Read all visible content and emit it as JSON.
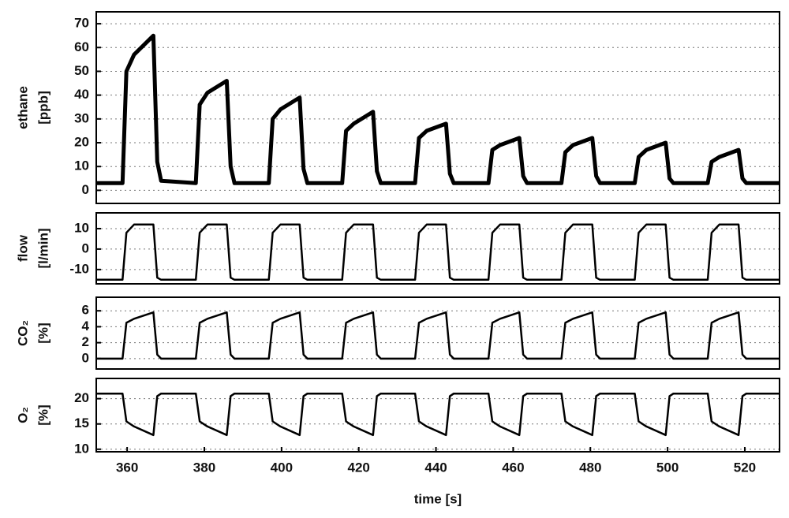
{
  "chart_data": [
    {
      "type": "line",
      "ylabel": "ethane",
      "yunit": "[ppb]",
      "x": [
        352,
        358.8,
        359.8,
        361.8,
        366.8,
        367.8,
        368.8,
        377.8,
        378.8,
        380.8,
        385.8,
        386.8,
        387.8,
        396.7,
        397.7,
        399.7,
        404.7,
        405.7,
        406.7,
        415.7,
        416.7,
        418.7,
        423.7,
        424.7,
        425.7,
        434.6,
        435.6,
        437.6,
        442.6,
        443.6,
        444.6,
        453.6,
        454.6,
        456.6,
        461.6,
        462.6,
        463.6,
        472.5,
        473.5,
        475.5,
        480.5,
        481.5,
        482.5,
        491.5,
        492.5,
        494.5,
        499.5,
        500.5,
        501.5,
        510.4,
        511.4,
        513.4,
        518.4,
        519.4,
        520.4,
        529
      ],
      "series": [
        {
          "color": "#000000",
          "values": [
            3,
            3,
            50,
            57,
            65,
            12,
            4,
            3,
            36,
            41,
            46,
            10,
            3,
            3,
            30,
            34,
            39,
            9,
            3,
            3,
            25,
            28,
            33,
            8,
            3,
            3,
            22,
            25,
            28,
            7,
            3,
            3,
            17,
            19,
            22,
            6,
            3,
            3,
            16,
            19,
            22,
            6,
            3,
            3,
            14,
            17,
            20,
            5,
            3,
            3,
            12,
            14,
            17,
            5,
            3,
            3
          ]
        }
      ],
      "xlim": [
        352,
        529
      ],
      "ylim": [
        -5.5,
        75
      ],
      "yticks": [
        0,
        10,
        20,
        30,
        40,
        50,
        60,
        70
      ],
      "grid": true
    },
    {
      "type": "line",
      "ylabel": "flow",
      "yunit": "[l/min]",
      "x": [
        352,
        358.8,
        359.8,
        361.8,
        366.8,
        367.8,
        368.8,
        377.8,
        378.8,
        380.8,
        385.8,
        386.8,
        387.8,
        396.7,
        397.7,
        399.7,
        404.7,
        405.7,
        406.7,
        415.7,
        416.7,
        418.7,
        423.7,
        424.7,
        425.7,
        434.6,
        435.6,
        437.6,
        442.6,
        443.6,
        444.6,
        453.6,
        454.6,
        456.6,
        461.6,
        462.6,
        463.6,
        472.5,
        473.5,
        475.5,
        480.5,
        481.5,
        482.5,
        491.5,
        492.5,
        494.5,
        499.5,
        500.5,
        501.5,
        510.4,
        511.4,
        513.4,
        518.4,
        519.4,
        520.4,
        529
      ],
      "series": [
        {
          "color": "#000000",
          "values": [
            -15,
            -15,
            8,
            12,
            12,
            -14,
            -15,
            -15,
            8,
            12,
            12,
            -14,
            -15,
            -15,
            8,
            12,
            12,
            -14,
            -15,
            -15,
            8,
            12,
            12,
            -14,
            -15,
            -15,
            8,
            12,
            12,
            -14,
            -15,
            -15,
            8,
            12,
            12,
            -14,
            -15,
            -15,
            8,
            12,
            12,
            -14,
            -15,
            -15,
            8,
            12,
            12,
            -14,
            -15,
            -15,
            8,
            12,
            12,
            -14,
            -15,
            -15
          ]
        }
      ],
      "xlim": [
        352,
        529
      ],
      "ylim": [
        -17,
        17.7
      ],
      "yticks": [
        -10,
        0,
        10
      ],
      "grid": true
    },
    {
      "type": "line",
      "ylabel": "CO₂",
      "yunit": "[%]",
      "x": [
        352,
        358.8,
        359.8,
        361.8,
        366.8,
        367.8,
        368.8,
        377.8,
        378.8,
        380.8,
        385.8,
        386.8,
        387.8,
        396.7,
        397.7,
        399.7,
        404.7,
        405.7,
        406.7,
        415.7,
        416.7,
        418.7,
        423.7,
        424.7,
        425.7,
        434.6,
        435.6,
        437.6,
        442.6,
        443.6,
        444.6,
        453.6,
        454.6,
        456.6,
        461.6,
        462.6,
        463.6,
        472.5,
        473.5,
        475.5,
        480.5,
        481.5,
        482.5,
        491.5,
        492.5,
        494.5,
        499.5,
        500.5,
        501.5,
        510.4,
        511.4,
        513.4,
        518.4,
        519.4,
        520.4,
        529
      ],
      "series": [
        {
          "color": "#000000",
          "values": [
            0,
            0,
            4.5,
            5,
            5.8,
            0.5,
            0,
            0,
            4.5,
            5,
            5.8,
            0.5,
            0,
            0,
            4.5,
            5,
            5.8,
            0.5,
            0,
            0,
            4.5,
            5,
            5.8,
            0.5,
            0,
            0,
            4.5,
            5,
            5.8,
            0.5,
            0,
            0,
            4.5,
            5,
            5.8,
            0.5,
            0,
            0,
            4.5,
            5,
            5.8,
            0.5,
            0,
            0,
            4.5,
            5,
            5.8,
            0.5,
            0,
            0,
            4.5,
            5,
            5.8,
            0.5,
            0,
            0
          ]
        }
      ],
      "xlim": [
        352,
        529
      ],
      "ylim": [
        -1.3,
        7.7
      ],
      "yticks": [
        0,
        2,
        4,
        6
      ],
      "grid": true
    },
    {
      "type": "line",
      "ylabel": "O₂",
      "yunit": "[%]",
      "xlabel": "time [s]",
      "x": [
        352,
        358.8,
        359.8,
        361.8,
        366.8,
        367.8,
        368.8,
        377.8,
        378.8,
        380.8,
        385.8,
        386.8,
        387.8,
        396.7,
        397.7,
        399.7,
        404.7,
        405.7,
        406.7,
        415.7,
        416.7,
        418.7,
        423.7,
        424.7,
        425.7,
        434.6,
        435.6,
        437.6,
        442.6,
        443.6,
        444.6,
        453.6,
        454.6,
        456.6,
        461.6,
        462.6,
        463.6,
        472.5,
        473.5,
        475.5,
        480.5,
        481.5,
        482.5,
        491.5,
        492.5,
        494.5,
        499.5,
        500.5,
        501.5,
        510.4,
        511.4,
        513.4,
        518.4,
        519.4,
        520.4,
        529
      ],
      "series": [
        {
          "color": "#000000",
          "values": [
            21,
            21,
            15.5,
            14.5,
            12.8,
            20.5,
            21,
            21,
            15.5,
            14.5,
            12.8,
            20.5,
            21,
            21,
            15.5,
            14.5,
            12.8,
            20.5,
            21,
            21,
            15.5,
            14.5,
            12.8,
            20.5,
            21,
            21,
            15.5,
            14.5,
            12.8,
            20.5,
            21,
            21,
            15.5,
            14.5,
            12.8,
            20.5,
            21,
            21,
            15.5,
            14.5,
            12.8,
            20.5,
            21,
            21,
            15.5,
            14.5,
            12.8,
            20.5,
            21,
            21,
            15.5,
            14.5,
            12.8,
            20.5,
            21,
            21
          ]
        }
      ],
      "xlim": [
        352,
        529
      ],
      "xticks": [
        360,
        380,
        400,
        420,
        440,
        460,
        480,
        500,
        520
      ],
      "ylim": [
        9.5,
        24
      ],
      "yticks": [
        10,
        15,
        20
      ],
      "grid": true
    }
  ]
}
